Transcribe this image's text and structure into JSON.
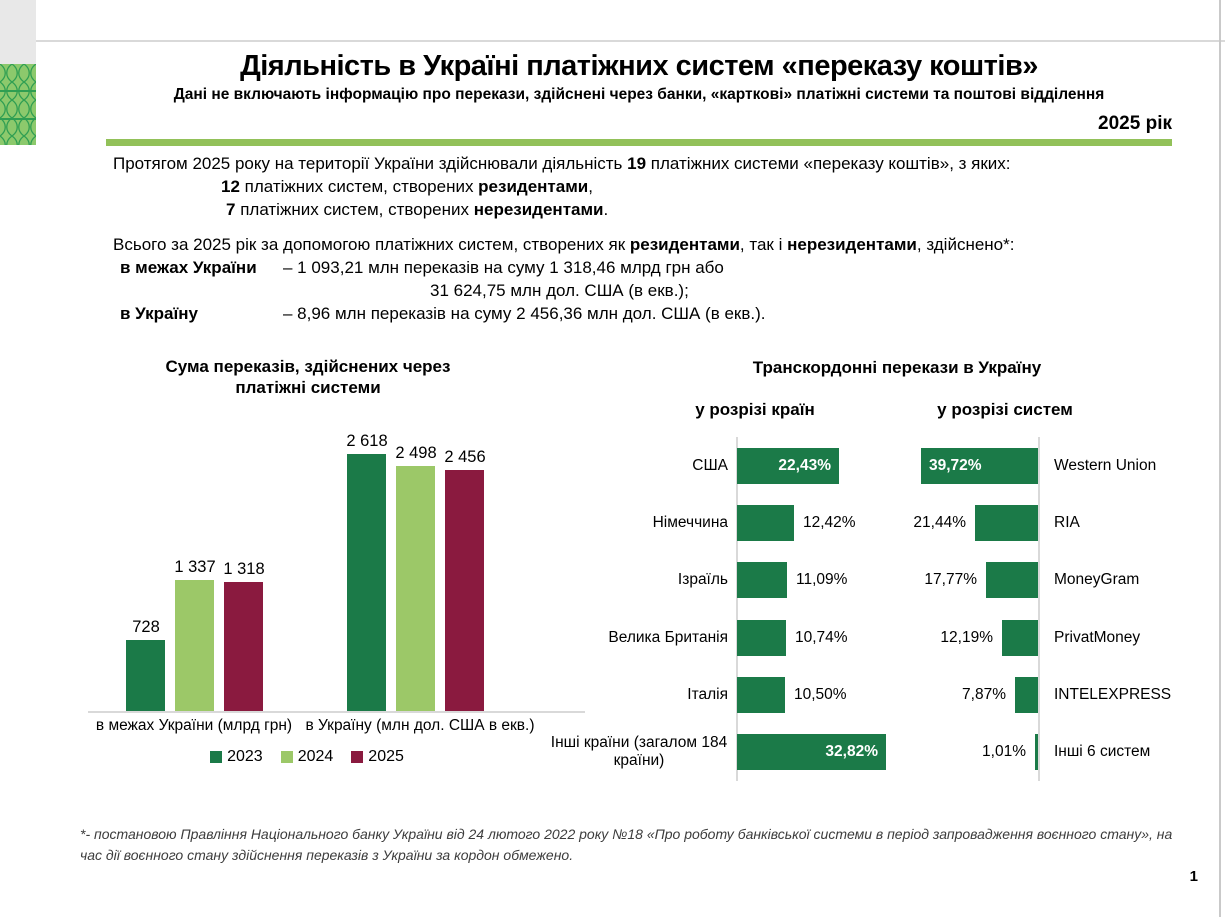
{
  "page": {
    "number": "1"
  },
  "colors": {
    "green_2023": "#1B7A48",
    "green_2024": "#9CC868",
    "maroon_2025": "#8A1A3F",
    "rule_green": "#92C159",
    "axis_grey": "#D9D9D9",
    "pattern_light": "#8CC96C",
    "pattern_dark": "#2F9E52",
    "corner_grey": "#E8E8E8"
  },
  "header": {
    "title": "Діяльність в Україні платіжних систем «переказу коштів»",
    "subtitle": "Дані не включають інформацію про перекази, здійснені через банки, «карткові» платіжні системи та поштові відділення",
    "year_label": "2025 рік"
  },
  "intro": {
    "l1a": "Протягом 2025 року на території України здійснювали діяльність ",
    "l1b": "19",
    "l1c": " платіжних системи «переказу коштів», з яких:",
    "l2a": "12",
    "l2b": " платіжних систем, створених ",
    "l2c": "резидентами",
    "l2d": ",",
    "l3a": "7",
    "l3b": " платіжних систем, створених ",
    "l3c": "нерезидентами",
    "l3d": "."
  },
  "totals": {
    "h1": "Всього за 2025 рік за допомогою платіжних систем, створених як ",
    "h2": "резидентами",
    "h3": ", так і ",
    "h4": "нерезидентами",
    "h5": ", здійснено*:",
    "row1_label": "в межах України",
    "row1_text": "– 1 093,21 млн переказів на суму 1 318,46 млрд грн або",
    "row1_cont": "31 624,75 млн дол. США (в екв.);",
    "row2_label": "в Україну",
    "row2_text": "– 8,96 млн переказів на суму 2 456,36 млн дол. США (в екв.)."
  },
  "chart_data": [
    {
      "type": "bar",
      "title": "Сума переказів, здійснених через платіжні системи",
      "categories": [
        "в межах України (млрд грн)",
        "в Україну (млн дол. США в екв.)"
      ],
      "series": [
        {
          "name": "2023",
          "color": "#1B7A48",
          "values": [
            728,
            2618
          ],
          "display": [
            "728",
            "2 618"
          ]
        },
        {
          "name": "2024",
          "color": "#9CC868",
          "values": [
            1337,
            2498
          ],
          "display": [
            "1 337",
            "2 498"
          ]
        },
        {
          "name": "2025",
          "color": "#8A1A3F",
          "values": [
            1318,
            2456
          ],
          "display": [
            "1 318",
            "2 456"
          ]
        }
      ],
      "ylim": [
        0,
        2800
      ],
      "grid": false,
      "legend_position": "bottom"
    },
    {
      "type": "bar-horizontal",
      "title": "Транскордонні перекази в Україну",
      "bar_color": "#1B7A48",
      "panels": [
        {
          "subtitle": "у розрізі країн",
          "side": "left",
          "labels": [
            "США",
            "Німеччина",
            "Ізраїль",
            "Велика Британія",
            "Італія",
            "Інші країни (загалом 184 країни)"
          ],
          "values": [
            22.43,
            12.42,
            11.09,
            10.74,
            10.5,
            32.82
          ],
          "display": [
            "22,43%",
            "12,42%",
            "11,09%",
            "10,74%",
            "10,50%",
            "32,82%"
          ],
          "label_inside": [
            true,
            false,
            false,
            false,
            false,
            true
          ]
        },
        {
          "subtitle": "у розрізі систем",
          "side": "right",
          "labels": [
            "Western Union",
            "RIA",
            "MoneyGram",
            "PrivatMoney",
            "INTELEXPRESS",
            "Інші 6 систем"
          ],
          "values": [
            39.72,
            21.44,
            17.77,
            12.19,
            7.87,
            1.01
          ],
          "display": [
            "39,72%",
            "21,44%",
            "17,77%",
            "12,19%",
            "7,87%",
            "1,01%"
          ],
          "label_inside": [
            true,
            false,
            false,
            false,
            false,
            false
          ]
        }
      ]
    }
  ],
  "footnote": {
    "text": "*- постановою Правління Національного банку України від 24 лютого 2022 року №18 «Про роботу банківської системи в період запровадження воєнного стану», на час дії воєнного стану здійснення переказів з України за кордон обмежено."
  }
}
